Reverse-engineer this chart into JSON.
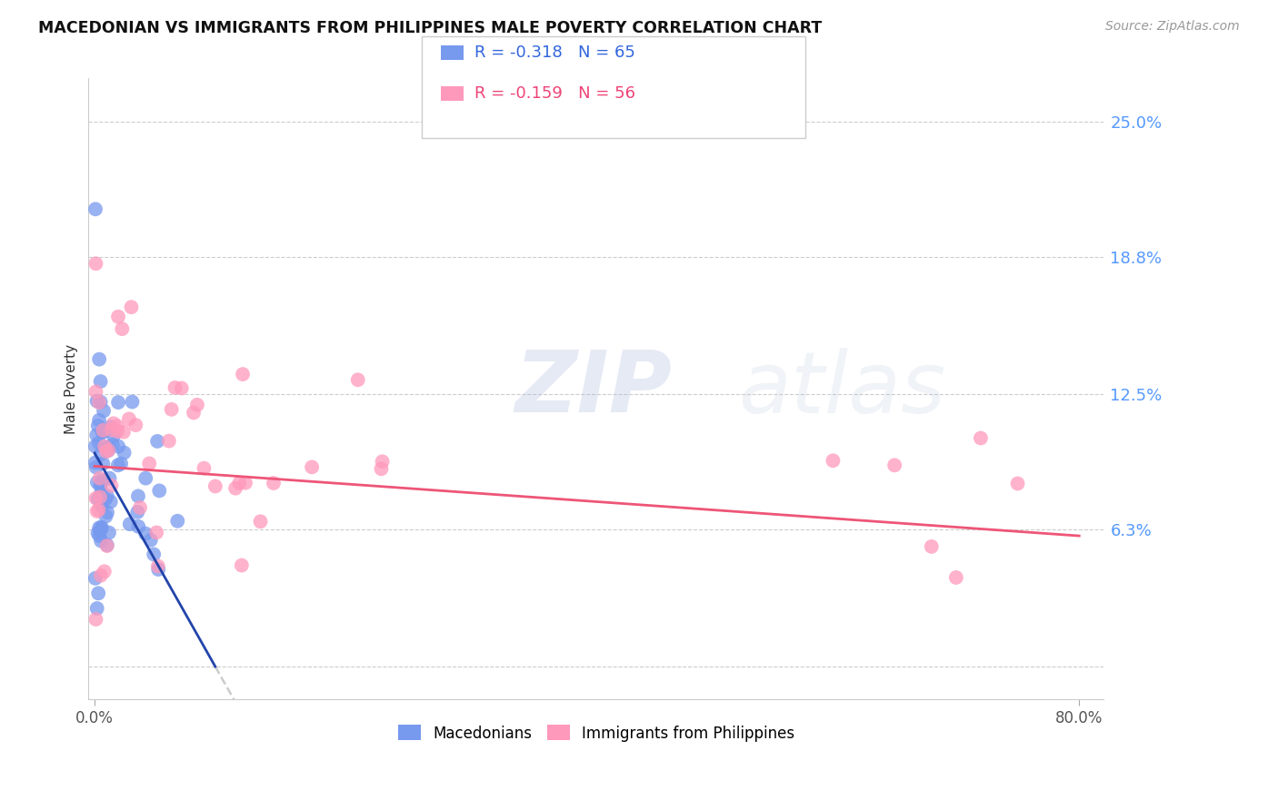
{
  "title": "MACEDONIAN VS IMMIGRANTS FROM PHILIPPINES MALE POVERTY CORRELATION CHART",
  "source": "Source: ZipAtlas.com",
  "ylabel": "Male Poverty",
  "blue_color": "#7799ee",
  "pink_color": "#ff99bb",
  "blue_line_color": "#2244aa",
  "pink_line_color": "#ee5577",
  "R_blue": -0.318,
  "N_blue": 65,
  "R_pink": -0.159,
  "N_pink": 56,
  "legend_label_blue": "Macedonians",
  "legend_label_pink": "Immigrants from Philippines",
  "watermark_zip": "ZIP",
  "watermark_atlas": "atlas",
  "ytick_vals": [
    0.0,
    0.063,
    0.125,
    0.188,
    0.25
  ],
  "ytick_labels": [
    "",
    "6.3%",
    "12.5%",
    "18.8%",
    "25.0%"
  ],
  "ylim_low": -0.015,
  "ylim_high": 0.27,
  "xlim_low": -0.005,
  "xlim_high": 0.82
}
